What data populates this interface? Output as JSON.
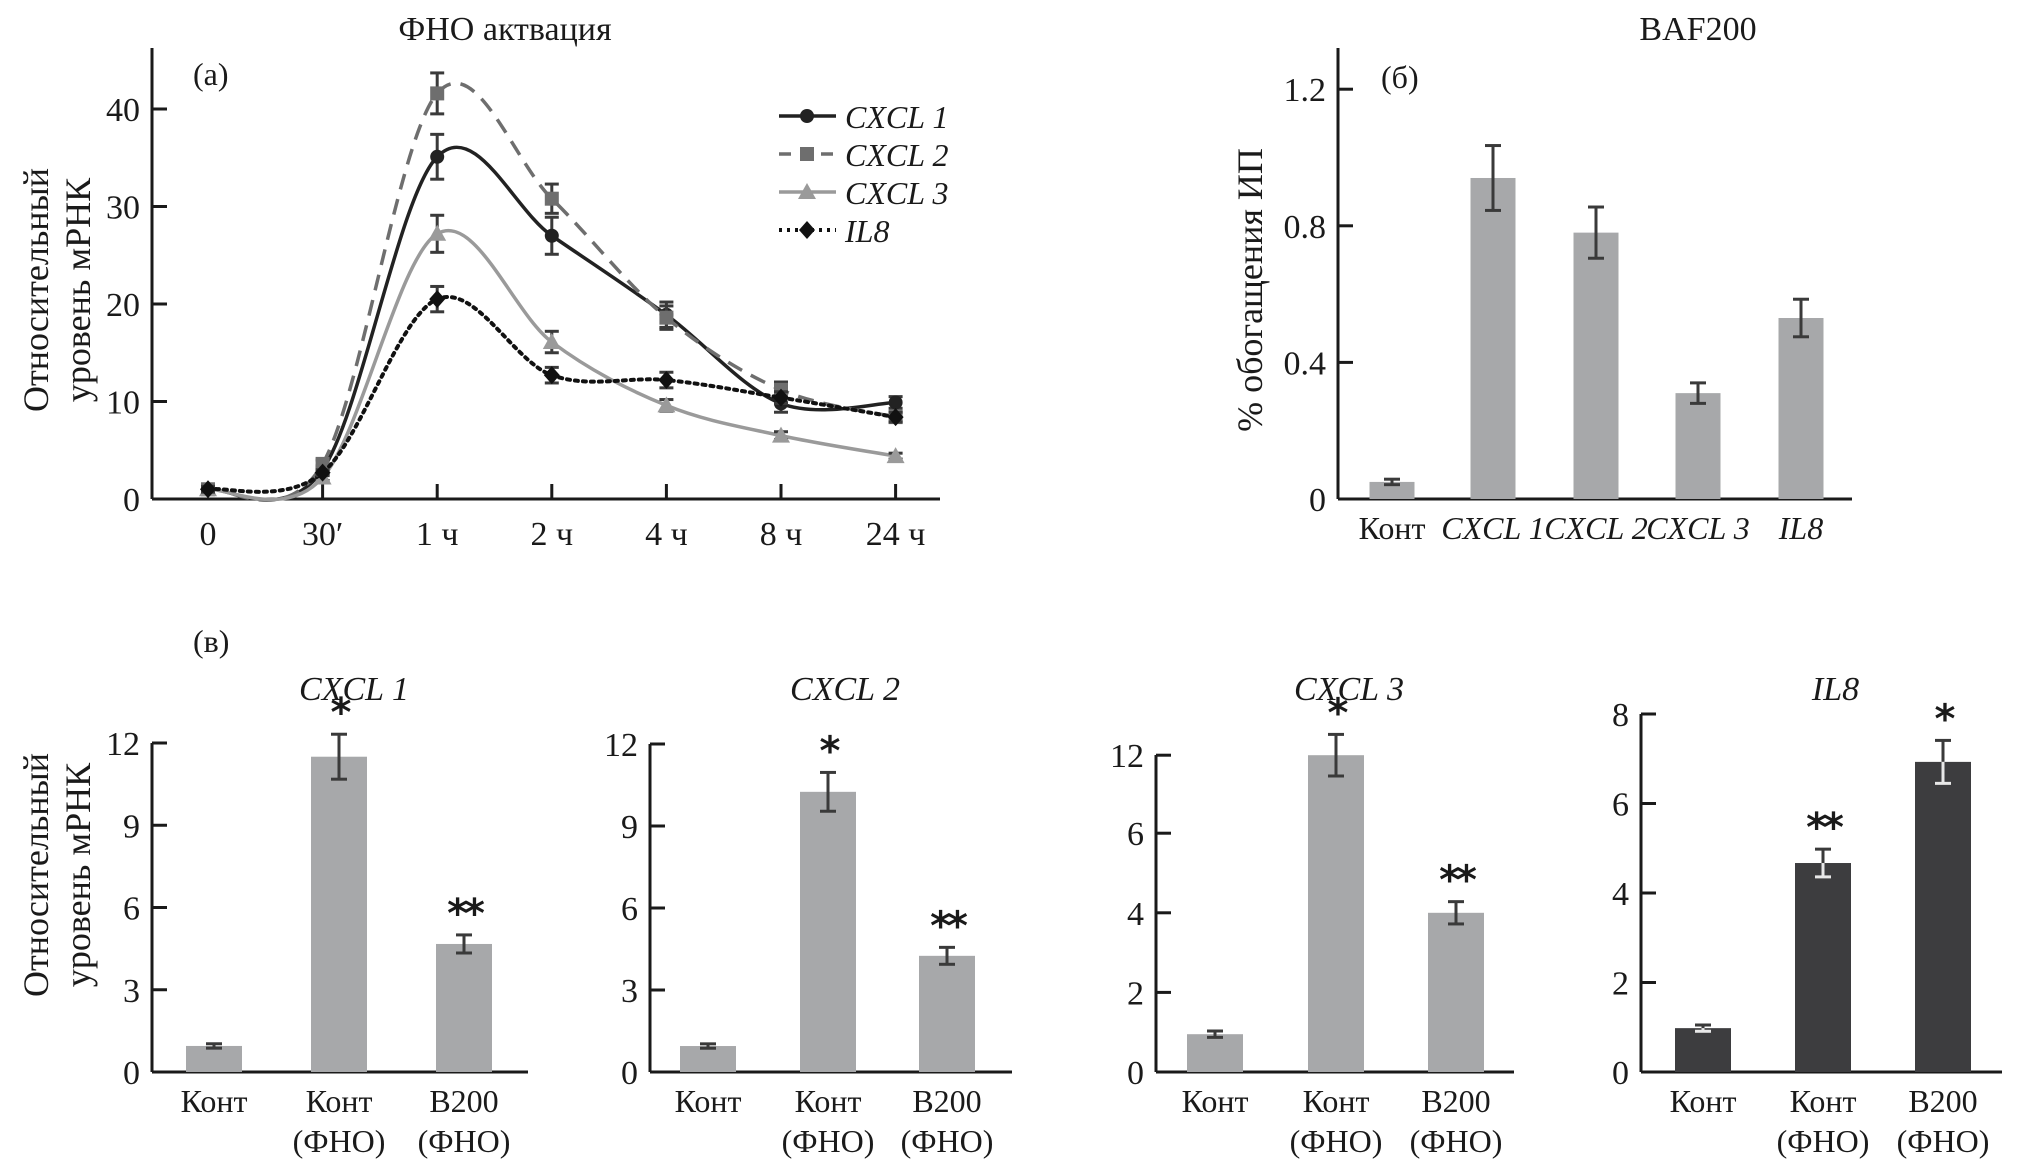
{
  "chart_data": [
    {
      "id": "a",
      "panel_label": "(a)",
      "type": "line",
      "title": "ФНО актвация",
      "ylabel_lines": [
        "Относительный",
        "уровень мРНК"
      ],
      "xlabel": "",
      "categories": [
        "0",
        "30′",
        "1 ч",
        "2 ч",
        "4 ч",
        "8 ч",
        "24 ч"
      ],
      "yticks": [
        0,
        10,
        20,
        30,
        40
      ],
      "ylim": [
        0,
        46
      ],
      "legend_position": "top-right",
      "series": [
        {
          "name": "CXCL 1",
          "style": "solid",
          "marker": "circle",
          "color": "#222222",
          "values": [
            1.0,
            3.0,
            35.1,
            27.0,
            18.9,
            9.8,
            9.9
          ],
          "errors": [
            0.3,
            0.4,
            2.3,
            1.9,
            1.3,
            0.9,
            0.6
          ]
        },
        {
          "name": "CXCL 2",
          "style": "dashed",
          "marker": "square",
          "color": "#6e6e6e",
          "values": [
            1.0,
            3.6,
            41.6,
            30.8,
            18.6,
            11.2,
            8.4
          ],
          "errors": [
            0.3,
            0.4,
            2.1,
            1.5,
            1.2,
            0.8,
            0.5
          ]
        },
        {
          "name": "CXCL 3",
          "style": "solid",
          "marker": "triangle",
          "color": "#9a9a9a",
          "values": [
            1.0,
            2.2,
            27.2,
            16.1,
            9.6,
            6.5,
            4.4
          ],
          "errors": [
            0.2,
            0.3,
            1.9,
            1.1,
            0.6,
            0.4,
            0.3
          ]
        },
        {
          "name": "IL8",
          "style": "dotted",
          "marker": "diamond",
          "color": "#111111",
          "values": [
            1.0,
            2.7,
            20.5,
            12.7,
            12.2,
            10.4,
            8.4
          ],
          "errors": [
            0.3,
            0.3,
            1.3,
            0.8,
            0.8,
            0.6,
            0.5
          ]
        }
      ]
    },
    {
      "id": "b",
      "panel_label": "(б)",
      "type": "bar",
      "title": "BAF200",
      "ylabel": "% обогащения ИП",
      "xlabel": "",
      "categories": [
        "Конт",
        "CXCL 1",
        "CXCL 2",
        "CXCL 3",
        "IL8"
      ],
      "categories_italic": [
        false,
        true,
        true,
        true,
        true
      ],
      "values": [
        0.05,
        0.94,
        0.78,
        0.31,
        0.53
      ],
      "errors": [
        0.008,
        0.095,
        0.075,
        0.03,
        0.055
      ],
      "yticks": [
        "0",
        "0.4",
        "0.8",
        "1.2"
      ],
      "ytick_values": [
        0,
        0.4,
        0.8,
        1.2
      ],
      "ylim": [
        0,
        1.3
      ],
      "bar_color": "#a7a8aa"
    },
    {
      "id": "v1",
      "panel_label": "(в)",
      "type": "bar",
      "title": "CXCL 1",
      "ylabel_lines": [
        "Относительный",
        "уровень мРНК"
      ],
      "categories": [
        [
          "Конт"
        ],
        [
          "Конт",
          "(ФНО)"
        ],
        [
          "B200",
          "(ФНО)"
        ]
      ],
      "values": [
        0.95,
        11.5,
        4.67
      ],
      "errors": [
        0.08,
        0.82,
        0.33
      ],
      "significance": [
        "",
        "*",
        "**"
      ],
      "yticks": [
        "0",
        "3",
        "6",
        "9",
        "12"
      ],
      "ytick_values": [
        0,
        3,
        6,
        9,
        12
      ],
      "ylim": [
        0,
        12
      ],
      "bar_color": "#a7a8aa"
    },
    {
      "id": "v2",
      "panel_label": "",
      "type": "bar",
      "title": "CXCL 2",
      "categories": [
        [
          "Конт"
        ],
        [
          "Конт",
          "(ФНО)"
        ],
        [
          "B200",
          "(ФНО)"
        ]
      ],
      "values": [
        0.95,
        10.25,
        4.25
      ],
      "errors": [
        0.08,
        0.71,
        0.31
      ],
      "significance": [
        "",
        "*",
        "**"
      ],
      "yticks": [
        "0",
        "3",
        "6",
        "9",
        "12"
      ],
      "ytick_values": [
        0,
        3,
        6,
        9,
        12
      ],
      "ylim": [
        0,
        12
      ],
      "bar_color": "#a7a8aa"
    },
    {
      "id": "v3",
      "panel_label": "",
      "type": "bar",
      "title": "CXCL 3",
      "categories": [
        [
          "Конт"
        ],
        [
          "Конт",
          "(ФНО)"
        ],
        [
          "B200",
          "(ФНО)"
        ]
      ],
      "values": [
        0.95,
        12.0,
        4.0
      ],
      "errors": [
        0.08,
        1.6,
        0.28
      ],
      "significance": [
        "",
        "*",
        "**"
      ],
      "yticks": [
        "0",
        "2",
        "4",
        "6",
        "12"
      ],
      "ytick_values": [
        0,
        2,
        4,
        6,
        12
      ],
      "axis_break": [
        6,
        12
      ],
      "ylim": [
        0,
        12
      ],
      "bar_color": "#a7a8aa"
    },
    {
      "id": "v4",
      "panel_label": "",
      "type": "bar",
      "title": "IL8",
      "categories": [
        [
          "Конт"
        ],
        [
          "Конт",
          "(ФНО)"
        ],
        [
          "B200",
          "(ФНО)"
        ]
      ],
      "values": [
        0.98,
        4.67,
        6.93
      ],
      "errors": [
        0.07,
        0.31,
        0.48
      ],
      "significance": [
        "",
        "**",
        "*"
      ],
      "yticks": [
        "0",
        "2",
        "4",
        "6",
        "8"
      ],
      "ytick_values": [
        0,
        2,
        4,
        6,
        8
      ],
      "ylim": [
        0,
        8
      ],
      "bar_color": "#3d3d3f"
    }
  ]
}
